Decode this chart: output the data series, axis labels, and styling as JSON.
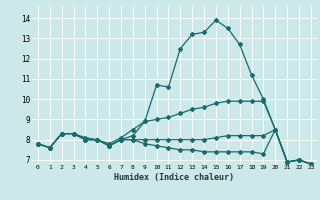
{
  "title": "",
  "xlabel": "Humidex (Indice chaleur)",
  "bg_color": "#cce8e8",
  "line_color": "#1a6b6b",
  "xlim": [
    -0.5,
    23.5
  ],
  "ylim": [
    6.8,
    14.6
  ],
  "yticks": [
    7,
    8,
    9,
    10,
    11,
    12,
    13,
    14
  ],
  "xticks": [
    0,
    1,
    2,
    3,
    4,
    5,
    6,
    7,
    8,
    9,
    10,
    11,
    12,
    13,
    14,
    15,
    16,
    17,
    18,
    19,
    20,
    21,
    22,
    23
  ],
  "series": [
    [
      7.8,
      7.6,
      8.3,
      8.3,
      8.1,
      8.0,
      7.8,
      8.1,
      8.5,
      8.9,
      10.7,
      10.6,
      12.5,
      13.2,
      13.3,
      13.9,
      13.5,
      12.7,
      11.2,
      10.0,
      8.5,
      6.9,
      7.0,
      6.8
    ],
    [
      7.8,
      7.6,
      8.3,
      8.3,
      8.0,
      8.0,
      7.7,
      8.0,
      8.2,
      8.9,
      9.0,
      9.1,
      9.3,
      9.5,
      9.6,
      9.8,
      9.9,
      9.9,
      9.9,
      9.9,
      8.5,
      6.9,
      7.0,
      6.8
    ],
    [
      7.8,
      7.6,
      8.3,
      8.3,
      8.0,
      8.0,
      7.7,
      8.0,
      8.0,
      8.0,
      8.0,
      8.0,
      8.0,
      8.0,
      8.0,
      8.1,
      8.2,
      8.2,
      8.2,
      8.2,
      8.5,
      6.9,
      7.0,
      6.8
    ],
    [
      7.8,
      7.6,
      8.3,
      8.3,
      8.0,
      8.0,
      7.7,
      8.0,
      8.0,
      7.8,
      7.7,
      7.6,
      7.5,
      7.5,
      7.4,
      7.4,
      7.4,
      7.4,
      7.4,
      7.3,
      8.5,
      6.9,
      7.0,
      6.8
    ]
  ]
}
